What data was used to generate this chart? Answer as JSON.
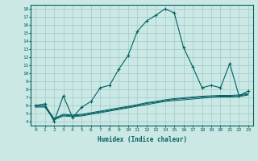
{
  "xlabel": "Humidex (Indice chaleur)",
  "bg_color": "#cce8e4",
  "grid_color": "#99cccc",
  "line_color": "#006060",
  "xlim": [
    -0.5,
    23.5
  ],
  "ylim": [
    3.5,
    18.5
  ],
  "xticks": [
    0,
    1,
    2,
    3,
    4,
    5,
    6,
    7,
    8,
    9,
    10,
    11,
    12,
    13,
    14,
    15,
    16,
    17,
    18,
    19,
    20,
    21,
    22,
    23
  ],
  "yticks": [
    4,
    5,
    6,
    7,
    8,
    9,
    10,
    11,
    12,
    13,
    14,
    15,
    16,
    17,
    18
  ],
  "main_x": [
    0,
    1,
    2,
    3,
    4,
    5,
    6,
    7,
    8,
    9,
    10,
    11,
    12,
    13,
    14,
    15,
    16,
    17,
    18,
    19,
    20,
    21,
    22,
    23
  ],
  "main_y": [
    6.0,
    6.2,
    4.0,
    7.2,
    4.5,
    5.8,
    6.5,
    8.2,
    8.5,
    10.5,
    12.2,
    15.2,
    16.5,
    17.2,
    18.0,
    17.5,
    13.2,
    10.8,
    8.2,
    8.5,
    8.2,
    11.2,
    7.2,
    7.8
  ],
  "line2_y": [
    5.8,
    5.8,
    4.2,
    4.7,
    4.6,
    4.7,
    4.9,
    5.1,
    5.3,
    5.5,
    5.7,
    5.9,
    6.1,
    6.3,
    6.5,
    6.6,
    6.7,
    6.8,
    6.9,
    7.0,
    7.05,
    7.05,
    7.1,
    7.3
  ],
  "line3_y": [
    5.9,
    5.9,
    4.3,
    4.8,
    4.7,
    4.8,
    5.0,
    5.2,
    5.4,
    5.6,
    5.8,
    6.0,
    6.25,
    6.4,
    6.6,
    6.75,
    6.85,
    6.95,
    7.05,
    7.1,
    7.15,
    7.15,
    7.2,
    7.4
  ],
  "line4_y": [
    6.0,
    6.0,
    4.4,
    4.9,
    4.8,
    4.9,
    5.1,
    5.3,
    5.5,
    5.7,
    5.9,
    6.1,
    6.35,
    6.5,
    6.7,
    6.85,
    6.95,
    7.05,
    7.15,
    7.2,
    7.25,
    7.25,
    7.3,
    7.5
  ]
}
